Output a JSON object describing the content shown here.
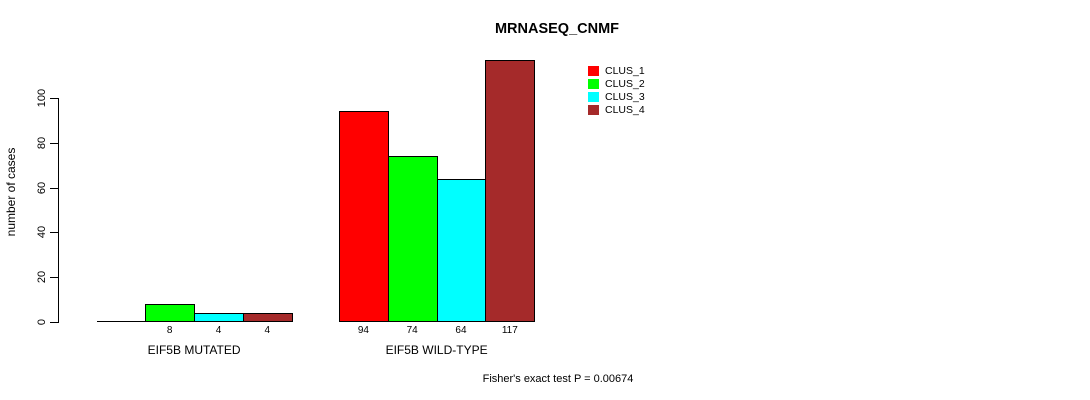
{
  "chart_data": {
    "type": "bar",
    "title": "MRNASEQ_CNMF",
    "ylabel": "number of cases",
    "xlabel": "",
    "yticks": [
      0,
      20,
      40,
      60,
      80,
      100
    ],
    "ylim": [
      0,
      117
    ],
    "grid": false,
    "legend_position": "top-right",
    "categories": [
      "EIF5B MUTATED",
      "EIF5B WILD-TYPE"
    ],
    "series": [
      {
        "name": "CLUS_1",
        "color": "#FF0000",
        "values": [
          0,
          94
        ]
      },
      {
        "name": "CLUS_2",
        "color": "#00FF00",
        "values": [
          8,
          74
        ]
      },
      {
        "name": "CLUS_3",
        "color": "#00FFFF",
        "values": [
          4,
          64
        ]
      },
      {
        "name": "CLUS_4",
        "color": "#A52A2A",
        "values": [
          4,
          117
        ]
      }
    ],
    "groups": [
      {
        "label": "EIF5B MUTATED",
        "values": [
          0,
          8,
          4,
          4
        ],
        "value_labels": [
          "",
          "8",
          "4",
          "4"
        ]
      },
      {
        "label": "EIF5B WILD-TYPE",
        "values": [
          94,
          74,
          64,
          117
        ],
        "value_labels": [
          "94",
          "74",
          "64",
          "117"
        ]
      }
    ],
    "footnote": "Fisher's exact test P = 0.00674"
  }
}
